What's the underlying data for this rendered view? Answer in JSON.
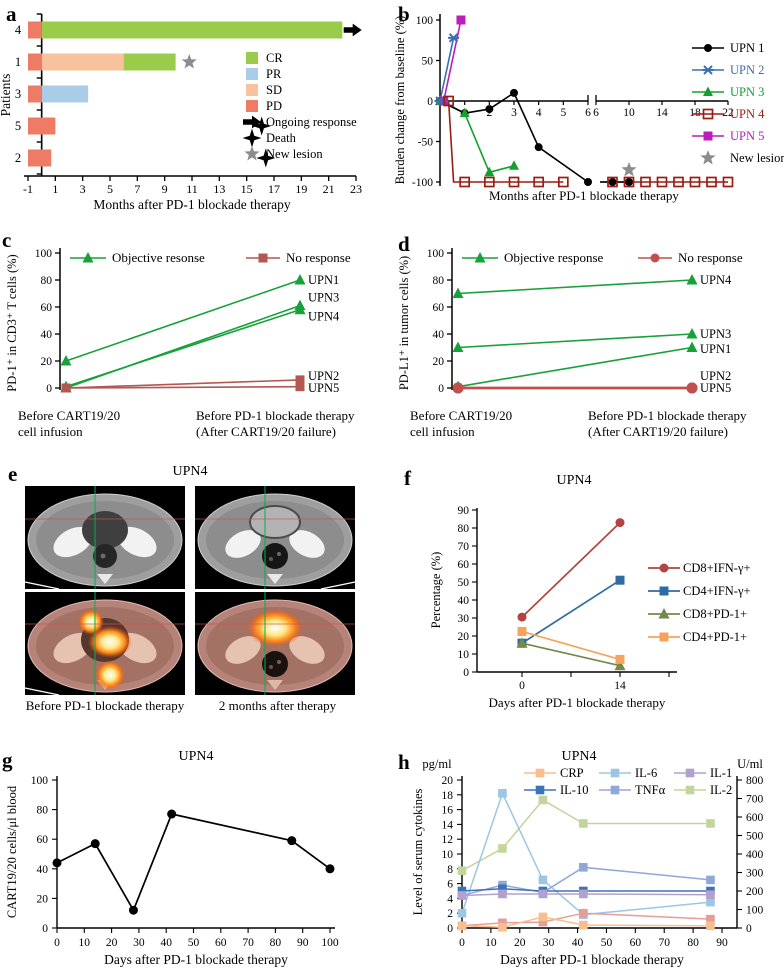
{
  "panels": {
    "a": {
      "label": "a"
    },
    "b": {
      "label": "b"
    },
    "c": {
      "label": "c"
    },
    "d": {
      "label": "d"
    },
    "e": {
      "label": "e"
    },
    "f": {
      "label": "f"
    },
    "g": {
      "label": "g"
    },
    "h": {
      "label": "h"
    }
  },
  "scan_panel": {
    "title": "UPN4",
    "captions": [
      "Before PD-1 blockade therapy",
      "2 months after therapy"
    ],
    "crosshair_colors": {
      "vertical": "#00b050",
      "horizontal": "#d05050"
    }
  },
  "chart_data": [
    {
      "panel": "a",
      "type": "bar",
      "xlabel": "Months after PD-1 blockade therapy",
      "ylabel": "Patients",
      "xlim": [
        -1,
        23
      ],
      "xticks": [
        -1,
        1,
        3,
        5,
        7,
        9,
        11,
        13,
        15,
        17,
        19,
        21,
        23
      ],
      "rows": [
        {
          "patient": "4",
          "segments": [
            {
              "response": "PD",
              "from": -1,
              "to": 0
            },
            {
              "response": "CR",
              "from": 0,
              "to": 22
            }
          ],
          "marker": {
            "type": "arrow",
            "x": 22.1
          }
        },
        {
          "patient": "1",
          "segments": [
            {
              "response": "PD",
              "from": -1,
              "to": 0
            },
            {
              "response": "SD",
              "from": 0,
              "to": 6
            },
            {
              "response": "CR",
              "from": 6,
              "to": 9.8
            }
          ],
          "marker": {
            "type": "star",
            "x": 10.8
          }
        },
        {
          "patient": "3",
          "segments": [
            {
              "response": "PD",
              "from": -1,
              "to": 0
            },
            {
              "response": "PR",
              "from": 0,
              "to": 3.4
            }
          ]
        },
        {
          "patient": "5",
          "segments": [
            {
              "response": "PD",
              "from": -1,
              "to": 1
            }
          ],
          "marker": {
            "type": "cross",
            "x": 16.1
          }
        },
        {
          "patient": "2",
          "segments": [
            {
              "response": "PD",
              "from": -1,
              "to": 0.7
            }
          ],
          "marker": {
            "type": "cross",
            "x": 16.4
          }
        }
      ],
      "legend": [
        {
          "label": "CR",
          "swatch": "square",
          "color": "#9bcb4a"
        },
        {
          "label": "PR",
          "swatch": "square",
          "color": "#a9cde9"
        },
        {
          "label": "SD",
          "swatch": "square",
          "color": "#f8c29e"
        },
        {
          "label": "PD",
          "swatch": "square",
          "color": "#ee7b66"
        },
        {
          "label": "Ongoing response",
          "swatch": "arrow",
          "color": "#000000"
        },
        {
          "label": "Death",
          "swatch": "cross",
          "color": "#000000"
        },
        {
          "label": "New lesion",
          "swatch": "star",
          "color": "#8c8c8c"
        }
      ]
    },
    {
      "panel": "b",
      "type": "line",
      "xlabel": "Months after PD-1 blockade therapy",
      "ylabel": "Burden change from baseline (%)",
      "ylim": [
        -100,
        100
      ],
      "yticks": [
        100,
        50,
        0,
        -50,
        -100
      ],
      "axis_break": {
        "left_range": [
          0,
          6
        ],
        "right_range": [
          6,
          22
        ],
        "left_ticks": [
          1,
          2,
          3,
          4,
          5,
          6
        ],
        "right_ticks": [
          6,
          10,
          14,
          18,
          22
        ]
      },
      "series": [
        {
          "name": "UPN 4",
          "color": "#9b1c10",
          "marker": "open-square",
          "points": [
            [
              0.35,
              0
            ],
            [
              1,
              -100
            ],
            [
              2,
              -100
            ],
            [
              3,
              -100
            ],
            [
              4,
              -100
            ],
            [
              5,
              -100
            ],
            [
              8,
              -100
            ],
            [
              10,
              -100
            ],
            [
              12,
              -100
            ],
            [
              14,
              -100
            ],
            [
              16,
              -100
            ],
            [
              18,
              -100
            ],
            [
              20,
              -100
            ],
            [
              22,
              -100
            ]
          ],
          "lines": [
            [
              [
                0.35,
                0
              ],
              [
                0.55,
                -100
              ],
              [
                5,
                -100
              ]
            ],
            [
              [
                6.5,
                -100
              ],
              [
                22,
                -100
              ]
            ]
          ]
        },
        {
          "name": "UPN 2",
          "color": "#3a6fb0",
          "marker": "x",
          "points": [
            [
              0,
              0
            ],
            [
              0.55,
              78
            ]
          ]
        },
        {
          "name": "UPN 5",
          "color": "#bb1dbb",
          "marker": "square",
          "points": [
            [
              0.15,
              0
            ],
            [
              0.85,
              100
            ]
          ]
        },
        {
          "name": "UPN 3",
          "color": "#15a02e",
          "marker": "triangle",
          "points": [
            [
              0,
              0
            ],
            [
              1,
              -15
            ],
            [
              2,
              -88
            ],
            [
              3,
              -80
            ]
          ]
        },
        {
          "name": "UPN 1",
          "color": "#000000",
          "marker": "circle",
          "points": [
            [
              0,
              0
            ],
            [
              1,
              -15
            ],
            [
              2,
              -10
            ],
            [
              3,
              10
            ],
            [
              4,
              -57
            ],
            [
              6,
              -100
            ],
            [
              8,
              -100
            ],
            [
              10,
              -100
            ]
          ],
          "lines": [
            [
              [
                0,
                0
              ],
              [
                1,
                -15
              ],
              [
                2,
                -10
              ],
              [
                3,
                10
              ],
              [
                4,
                -57
              ],
              [
                6,
                -100
              ]
            ],
            [
              [
                6.5,
                -100
              ],
              [
                10,
                -100
              ]
            ]
          ]
        }
      ],
      "annotations": [
        {
          "type": "star",
          "x": 10,
          "y": -85,
          "color": "#8c8c8c",
          "meaning": "New lesion"
        }
      ],
      "legend": [
        {
          "label": "UPN 1"
        },
        {
          "label": "UPN 2"
        },
        {
          "label": "UPN 3"
        },
        {
          "label": "UPN 4"
        },
        {
          "label": "UPN 5"
        },
        {
          "label": "New lesion",
          "swatch": "star",
          "color": "#8c8c8c"
        }
      ]
    },
    {
      "panel": "c",
      "type": "line",
      "ylabel": "PD-1⁺ in CD3⁺ T cells (%)",
      "ylim": [
        0,
        100
      ],
      "yticks": [
        0,
        20,
        40,
        60,
        80,
        100
      ],
      "categories": [
        [
          "Before CART19/20",
          "cell infusion"
        ],
        [
          "Before PD-1 blockade therapy",
          "(After CART19/20 failure)"
        ]
      ],
      "series": [
        {
          "name": "UPN1",
          "color": "#18a03a",
          "marker": "triangle",
          "values": [
            20,
            80
          ]
        },
        {
          "name": "UPN3",
          "color": "#18a03a",
          "marker": "triangle",
          "values": [
            0,
            61
          ]
        },
        {
          "name": "UPN4",
          "color": "#18a03a",
          "marker": "triangle",
          "values": [
            1,
            58
          ]
        },
        {
          "name": "UPN2",
          "color": "#b25751",
          "marker": "square",
          "values": [
            0,
            6
          ]
        },
        {
          "name": "UPN5",
          "color": "#b25751",
          "marker": "square",
          "values": [
            0,
            1
          ]
        }
      ],
      "end_labels": [
        {
          "label": "UPN1",
          "at": 80
        },
        {
          "label": "UPN3",
          "at": 67
        },
        {
          "label": "UPN4",
          "at": 53
        },
        {
          "label": "UPN2",
          "at": 9
        },
        {
          "label": "UPN5",
          "at": 0
        }
      ],
      "legend": [
        {
          "label": "Objective resonse",
          "color": "#18a03a",
          "marker": "triangle"
        },
        {
          "label": "No response",
          "color": "#b25751",
          "marker": "square"
        }
      ]
    },
    {
      "panel": "d",
      "type": "line",
      "ylabel": "PD-L1⁺ in tumor cells (%)",
      "ylim": [
        0,
        100
      ],
      "yticks": [
        0,
        20,
        40,
        60,
        80,
        100
      ],
      "categories": [
        [
          "Before CART19/20",
          "cell infusion"
        ],
        [
          "Before PD-1 blockade therapy",
          "(After CART19/20 failure)"
        ]
      ],
      "series": [
        {
          "name": "UPN4",
          "color": "#18a03a",
          "marker": "triangle",
          "values": [
            70,
            80
          ]
        },
        {
          "name": "UPN3",
          "color": "#18a03a",
          "marker": "triangle",
          "values": [
            30,
            40
          ]
        },
        {
          "name": "UPN1",
          "color": "#18a03a",
          "marker": "triangle",
          "values": [
            1,
            30
          ]
        },
        {
          "name": "UPN2",
          "color": "#c0504d",
          "marker": "circle",
          "values": [
            0,
            0
          ],
          "width": 2.6,
          "msize": 5.5
        },
        {
          "name": "UPN5",
          "color": "#c0504d",
          "marker": "circle",
          "values": [
            0,
            0
          ],
          "width": 2.6,
          "msize": 5.5
        }
      ],
      "end_labels": [
        {
          "label": "UPN4",
          "at": 80
        },
        {
          "label": "UPN3",
          "at": 40
        },
        {
          "label": "UPN1",
          "at": 29
        },
        {
          "label": "UPN2",
          "at": 9
        },
        {
          "label": "UPN5",
          "at": 0
        }
      ],
      "legend": [
        {
          "label": "Objective response",
          "color": "#18a03a",
          "marker": "triangle"
        },
        {
          "label": "No response",
          "color": "#c0504d",
          "marker": "circle"
        }
      ]
    },
    {
      "panel": "f",
      "type": "line",
      "title": "UPN4",
      "xlabel": "Days after PD-1 blockade therapy",
      "ylabel": "Percentage (%)",
      "ylim": [
        0,
        90
      ],
      "yticks": [
        0,
        10,
        20,
        30,
        40,
        50,
        60,
        70,
        80,
        90
      ],
      "x": [
        0,
        14
      ],
      "series": [
        {
          "name": "CD8+IFN-γ+",
          "color": "#b04543",
          "marker": "circle",
          "values": [
            30.5,
            83
          ]
        },
        {
          "name": "CD4+IFN-γ+",
          "color": "#2d6ba3",
          "marker": "square",
          "values": [
            16,
            51
          ]
        },
        {
          "name": "CD8+PD-1+",
          "color": "#75894a",
          "marker": "triangle",
          "values": [
            16,
            3.5
          ]
        },
        {
          "name": "CD4+PD-1+",
          "color": "#f8a35c",
          "marker": "square",
          "values": [
            22.5,
            7
          ]
        }
      ]
    },
    {
      "panel": "g",
      "type": "line",
      "title": "UPN4",
      "xlabel": "Days after PD-1 blockade therapy",
      "ylabel": "CART19/20 cells/μl blood",
      "ylim": [
        0,
        100
      ],
      "yticks": [
        0,
        20,
        40,
        60,
        80,
        100
      ],
      "xticks": [
        0,
        10,
        20,
        30,
        40,
        50,
        60,
        70,
        80,
        90,
        100
      ],
      "color": "#000000",
      "points": [
        [
          0,
          44
        ],
        [
          14,
          57
        ],
        [
          28,
          12
        ],
        [
          42,
          77
        ],
        [
          86,
          59
        ],
        [
          100,
          40
        ]
      ]
    },
    {
      "panel": "h",
      "type": "line",
      "title": "UPN4",
      "left_unit": "pg/ml",
      "right_unit": "U/ml",
      "xlabel": "Days after PD-1 blockade therapy",
      "ylabel": "Level of serum cytokines",
      "ylim_left": [
        0,
        20
      ],
      "ylim_right": [
        0,
        800
      ],
      "yticks_left": [
        0,
        2,
        4,
        6,
        8,
        10,
        12,
        14,
        16,
        18,
        20
      ],
      "yticks_right": [
        0,
        100,
        200,
        300,
        400,
        500,
        600,
        700,
        800
      ],
      "xticks": [
        0,
        10,
        20,
        30,
        40,
        50,
        60,
        70,
        80,
        90
      ],
      "x": [
        0,
        14,
        28,
        42,
        86
      ],
      "series": [
        {
          "name": "IL-2",
          "axis": "right",
          "color": "#c2d59a",
          "values": [
            310,
            430,
            692,
            565,
            565
          ]
        },
        {
          "name": "IL-6",
          "axis": "left",
          "color": "#9cc6e4",
          "values": [
            2,
            18.2,
            6.5,
            1.8,
            3.5
          ]
        },
        {
          "name": "TNFα",
          "axis": "left",
          "color": "#90a8d8",
          "values": [
            4.4,
            5.8,
            4.8,
            8.2,
            6.5
          ]
        },
        {
          "name": "IL-10",
          "axis": "left",
          "color": "#3b74b9",
          "values": [
            5,
            5.3,
            5,
            5,
            5
          ]
        },
        {
          "name": "IL-1",
          "axis": "left",
          "color": "#b2a1cd",
          "values": [
            4.4,
            4.6,
            4.6,
            4.6,
            4.5
          ]
        },
        {
          "name": "",
          "axis": "left",
          "color": "#e39e99",
          "values": [
            0.3,
            0.7,
            0.8,
            2.0,
            1.2
          ]
        },
        {
          "name": "CRP",
          "axis": "left",
          "color": "#f8bf8d",
          "values": [
            0.3,
            0.1,
            1.5,
            0.4,
            0.3
          ]
        }
      ],
      "legend_order": [
        "CRP",
        "IL-6",
        "IL-1",
        "IL-10",
        "TNFα",
        "IL-2"
      ]
    }
  ]
}
